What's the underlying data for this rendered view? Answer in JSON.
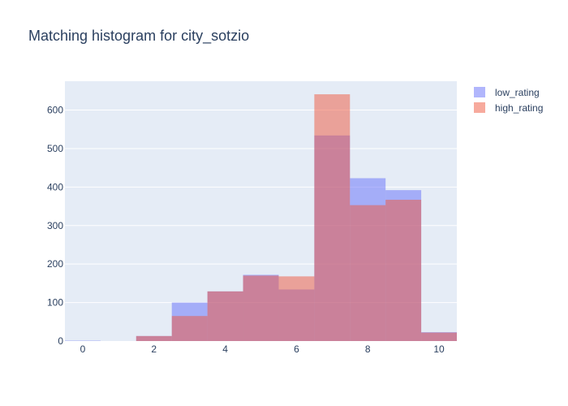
{
  "chart_data": {
    "type": "bar",
    "title": "Matching histogram for city_sotzio",
    "xlabel": "",
    "ylabel": "",
    "bins": [
      {
        "start": -0.5,
        "end": 0.5
      },
      {
        "start": 0.5,
        "end": 1.5
      },
      {
        "start": 1.5,
        "end": 2.5
      },
      {
        "start": 2.5,
        "end": 3.5
      },
      {
        "start": 3.5,
        "end": 4.5
      },
      {
        "start": 4.5,
        "end": 5.5
      },
      {
        "start": 5.5,
        "end": 6.5
      },
      {
        "start": 6.5,
        "end": 7.5
      },
      {
        "start": 7.5,
        "end": 8.5
      },
      {
        "start": 8.5,
        "end": 9.5
      },
      {
        "start": 9.5,
        "end": 10.5
      }
    ],
    "series": [
      {
        "name": "low_rating",
        "color": "#636efa",
        "values": [
          1,
          0,
          13,
          100,
          129,
          172,
          134,
          534,
          423,
          392,
          23
        ]
      },
      {
        "name": "high_rating",
        "color": "#ef553b",
        "values": [
          0,
          0,
          13,
          65,
          129,
          170,
          168,
          641,
          353,
          367,
          22
        ]
      }
    ],
    "xlim": [
      -0.5,
      10.5
    ],
    "ylim": [
      0,
      675
    ],
    "x_ticks": [
      "0",
      "2",
      "4",
      "6",
      "8",
      "10"
    ],
    "y_ticks": [
      "0",
      "100",
      "200",
      "300",
      "400",
      "500",
      "600"
    ],
    "grid": true,
    "legend_position": "top-right",
    "plot_bg": "#e5ecf6",
    "opacity": 0.5
  }
}
